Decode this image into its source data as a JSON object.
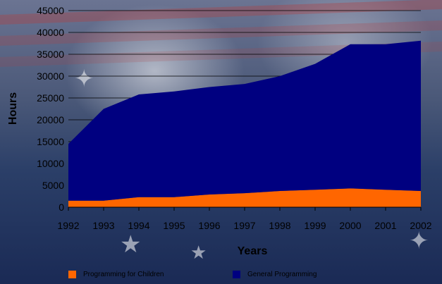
{
  "chart_data": {
    "type": "area",
    "stacked": true,
    "categories": [
      "1992",
      "1993",
      "1994",
      "1995",
      "1996",
      "1997",
      "1998",
      "1999",
      "2000",
      "2001",
      "2002"
    ],
    "series": [
      {
        "name": "Programming for Children",
        "color": "#ff6600",
        "values": [
          1500,
          1500,
          2300,
          2300,
          2900,
          3200,
          3700,
          4000,
          4300,
          4000,
          3700
        ]
      },
      {
        "name": "General Programming",
        "color": "#000080",
        "values": [
          13000,
          21000,
          23500,
          24200,
          24600,
          25000,
          26300,
          28800,
          33000,
          33300,
          34400
        ]
      }
    ],
    "xlabel": "Years",
    "ylabel": "Hours",
    "ylim": [
      0,
      45000
    ],
    "yticks": [
      "0",
      "5000",
      "10000",
      "15000",
      "20000",
      "25000",
      "30000",
      "35000",
      "40000",
      "45000"
    ],
    "grid": true,
    "legend_position": "bottom"
  }
}
